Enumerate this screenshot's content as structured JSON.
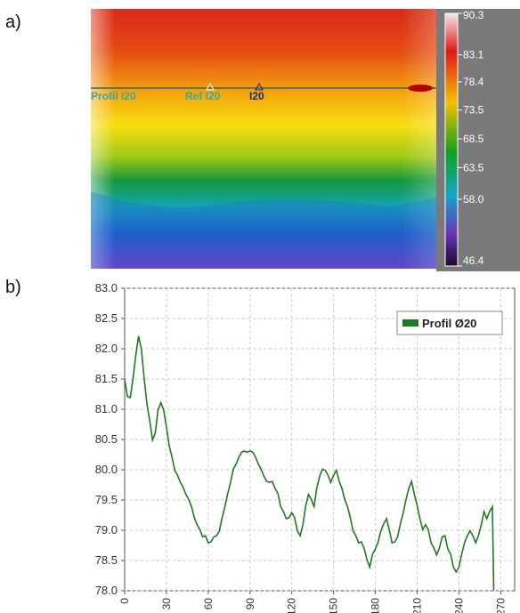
{
  "panels": {
    "a": "a)",
    "b": "b)"
  },
  "thermogram": {
    "overlay_labels": {
      "profile": "Profil I20",
      "ref": "Ref I20",
      "cursor": "I20"
    },
    "scale_ticks": [
      "90.3",
      "83.1",
      "78.4",
      "73.5",
      "68.5",
      "63.5",
      "58.0",
      "46.4"
    ],
    "scale_values": [
      90.3,
      83.1,
      78.4,
      73.5,
      68.5,
      63.5,
      58.0,
      46.4
    ],
    "palette": [
      "#f4e8ea",
      "#e01818",
      "#f5c000",
      "#11a020",
      "#14a6c8",
      "#6a36b8",
      "#1b0a2a"
    ]
  },
  "chart_data": {
    "type": "line",
    "title": "",
    "xlabel": "",
    "ylabel": "",
    "ylim": [
      78.0,
      83.0
    ],
    "xlim": [
      0,
      280
    ],
    "x_ticks": [
      0,
      30,
      60,
      90,
      120,
      150,
      180,
      210,
      240,
      270
    ],
    "x_tick_labels": [
      "0",
      "30",
      "60",
      "90",
      "120",
      "150",
      "180",
      "210",
      "240",
      "270"
    ],
    "y_ticks": [
      78.0,
      78.5,
      79.0,
      79.5,
      80.0,
      80.5,
      81.0,
      81.5,
      82.0,
      82.5,
      83.0
    ],
    "y_tick_labels": [
      "78.0",
      "78.5",
      "79.0",
      "79.5",
      "80.0",
      "80.5",
      "81.0",
      "81.5",
      "82.0",
      "82.5",
      "83.0"
    ],
    "grid": true,
    "legend_position": "top-right",
    "series": [
      {
        "name": "Profil Ø20",
        "color": "#1e7b1e",
        "x": [
          0,
          2,
          4,
          6,
          8,
          10,
          12,
          14,
          16,
          18,
          20,
          22,
          24,
          26,
          28,
          30,
          32,
          34,
          36,
          38,
          40,
          42,
          44,
          46,
          48,
          50,
          52,
          54,
          56,
          58,
          60,
          62,
          64,
          66,
          68,
          70,
          72,
          74,
          76,
          78,
          80,
          82,
          84,
          86,
          88,
          90,
          92,
          94,
          96,
          98,
          100,
          102,
          104,
          106,
          108,
          110,
          112,
          114,
          116,
          118,
          120,
          122,
          124,
          126,
          128,
          130,
          132,
          134,
          136,
          138,
          140,
          142,
          144,
          146,
          148,
          150,
          152,
          154,
          156,
          158,
          160,
          162,
          164,
          166,
          168,
          170,
          172,
          174,
          176,
          178,
          180,
          182,
          184,
          186,
          188,
          190,
          192,
          194,
          196,
          198,
          200,
          202,
          204,
          206,
          208,
          210,
          212,
          214,
          216,
          218,
          220,
          222,
          224,
          226,
          228,
          230,
          232,
          234,
          236,
          238,
          240,
          242,
          244,
          246,
          248,
          250,
          252,
          254,
          256,
          258,
          260,
          262,
          264
        ],
        "values": [
          81.5,
          81.2,
          81.2,
          81.5,
          81.9,
          82.2,
          82.0,
          81.5,
          81.1,
          80.8,
          80.5,
          80.6,
          81.0,
          81.1,
          81.0,
          80.7,
          80.4,
          80.2,
          80.0,
          79.9,
          79.8,
          79.7,
          79.6,
          79.5,
          79.4,
          79.2,
          79.1,
          79.0,
          78.9,
          78.9,
          78.8,
          78.8,
          78.9,
          78.9,
          79.0,
          79.2,
          79.4,
          79.6,
          79.8,
          80.0,
          80.1,
          80.2,
          80.3,
          80.3,
          80.3,
          80.3,
          80.3,
          80.2,
          80.1,
          80.0,
          79.9,
          79.8,
          79.8,
          79.8,
          79.7,
          79.6,
          79.4,
          79.3,
          79.2,
          79.2,
          79.3,
          79.2,
          79.0,
          78.9,
          79.1,
          79.4,
          79.6,
          79.5,
          79.4,
          79.7,
          79.9,
          80.0,
          80.0,
          79.9,
          79.8,
          79.9,
          80.0,
          79.8,
          79.7,
          79.5,
          79.4,
          79.2,
          79.0,
          78.9,
          78.8,
          78.8,
          78.7,
          78.5,
          78.4,
          78.6,
          78.7,
          78.8,
          79.0,
          79.1,
          79.2,
          79.0,
          78.8,
          78.8,
          78.9,
          79.1,
          79.3,
          79.5,
          79.7,
          79.8,
          79.6,
          79.4,
          79.2,
          79.0,
          79.1,
          79.0,
          78.8,
          78.7,
          78.6,
          78.7,
          78.9,
          78.9,
          78.7,
          78.6,
          78.4,
          78.3,
          78.4,
          78.6,
          78.8,
          78.9,
          79.0,
          78.9,
          78.8,
          78.9,
          79.1,
          79.3,
          79.2,
          79.3,
          79.4
        ]
      }
    ]
  }
}
